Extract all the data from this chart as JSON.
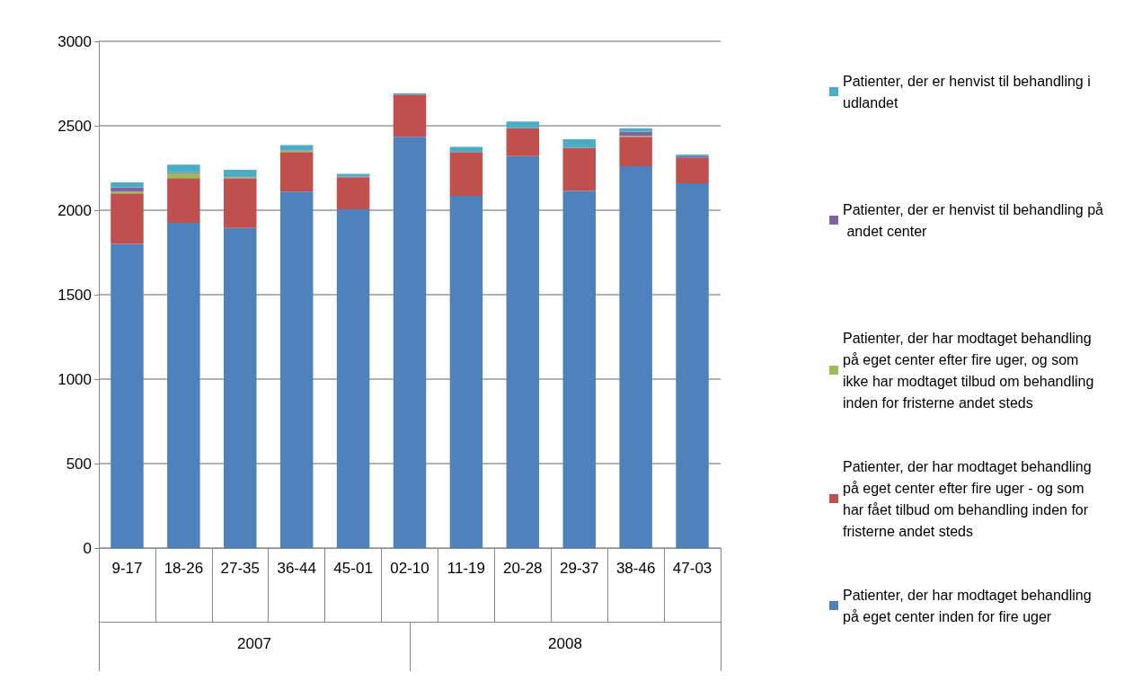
{
  "chart_data": {
    "type": "bar",
    "stacked": true,
    "categories": [
      "9-17",
      "18-26",
      "27-35",
      "36-44",
      "45-01",
      "02-10",
      "11-19",
      "20-28",
      "29-37",
      "38-46",
      "47-03"
    ],
    "annotations": [
      "2007",
      "2008"
    ],
    "series": [
      {
        "name": "Patienter, der har modtaget behandling på eget center inden for fire uger",
        "color": "#4f81bd",
        "values": [
          1800,
          1925,
          1895,
          2110,
          2005,
          2435,
          2085,
          2320,
          2115,
          2260,
          2160
        ]
      },
      {
        "name": "Patienter, der har modtaget behandling på eget center efter fire uger - og som har fået tilbud om behandling inden for fristerne andet steds",
        "color": "#c0504d",
        "values": [
          300,
          265,
          295,
          235,
          190,
          250,
          260,
          165,
          255,
          175,
          150
        ]
      },
      {
        "name": "Patienter, der har modtaget behandling på eget center efter fire uger, og som ikke har modtaget tilbud om behandling inden for fristerne andet steds",
        "color": "#9bbb59",
        "values": [
          10,
          30,
          5,
          7,
          0,
          0,
          0,
          0,
          0,
          5,
          0
        ]
      },
      {
        "name": "Patienter, der er henvist til behandling på andet center",
        "color": "#8064a2",
        "values": [
          25,
          5,
          0,
          3,
          5,
          0,
          0,
          0,
          0,
          25,
          10
        ]
      },
      {
        "name": "Patienter, der er henvist til behandling i udlandet",
        "color": "#4bacc6",
        "values": [
          30,
          45,
          45,
          30,
          15,
          8,
          30,
          40,
          50,
          20,
          10
        ]
      }
    ],
    "ylim": [
      0,
      3000
    ],
    "yticks": [
      0,
      500,
      1000,
      1500,
      2000,
      2500,
      3000
    ],
    "grid": "y",
    "legend": "right"
  }
}
